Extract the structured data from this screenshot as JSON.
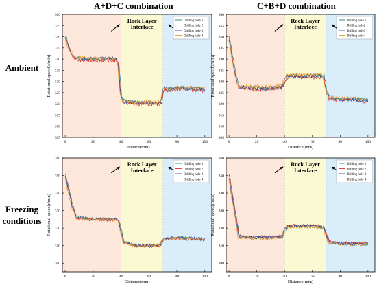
{
  "columns": [
    "A+D+C combination",
    "C+B+D combination"
  ],
  "rows": [
    "Ambient",
    "Freezing conditions"
  ],
  "annotation": [
    "Rock Layer",
    "Interface"
  ],
  "colors": {
    "zone1": "#fce7da",
    "zone2": "#fbf9d4",
    "zone3": "#d9edfa",
    "series": [
      "#1b7f80",
      "#e03127",
      "#2846a0",
      "#e69a2c"
    ]
  },
  "chart_data": [
    {
      "type": "line",
      "panel": "A+D+C combination / Ambient",
      "xlabel": "Distance(mm)",
      "ylabel": "Rotational speed(r/min)",
      "xlim": [
        -2,
        105
      ],
      "ylim": [
        305,
        360
      ],
      "xticks": [
        0,
        20,
        40,
        60,
        80,
        100
      ],
      "yticks": [
        305,
        310,
        315,
        320,
        325,
        330,
        335,
        340,
        345,
        350,
        355,
        360
      ],
      "zones": [
        [
          -2,
          40
        ],
        [
          40,
          70
        ],
        [
          70,
          105
        ]
      ],
      "arrows": [
        [
          33,
          352.5,
          39,
          355.5
        ],
        [
          80,
          352.5,
          74,
          355.5
        ]
      ],
      "legend": [
        "Drilling hole 1",
        "Drilling hole 2",
        "Drilling hole 3",
        "Drilling hole 4"
      ],
      "series_profile": [
        [
          0,
          350
        ],
        [
          2,
          346
        ],
        [
          6,
          341
        ],
        [
          10,
          340
        ],
        [
          20,
          340
        ],
        [
          30,
          340
        ],
        [
          36,
          340
        ],
        [
          38,
          338
        ],
        [
          40,
          323
        ],
        [
          42,
          321
        ],
        [
          50,
          320.5
        ],
        [
          60,
          320.5
        ],
        [
          67,
          320.5
        ],
        [
          69,
          321
        ],
        [
          70,
          326.5
        ],
        [
          80,
          327
        ],
        [
          90,
          327
        ],
        [
          100,
          326.5
        ]
      ]
    },
    {
      "type": "line",
      "panel": "C+B+D combination / Ambient",
      "xlabel": "Distance(mm)",
      "ylabel": "Rotational speed(r/min)",
      "xlim": [
        -2,
        105
      ],
      "ylim": [
        305,
        360
      ],
      "xticks": [
        0,
        20,
        40,
        60,
        80,
        100
      ],
      "yticks": [
        305,
        310,
        315,
        320,
        325,
        330,
        335,
        340,
        345,
        350,
        355,
        360
      ],
      "zones": [
        [
          -2,
          40
        ],
        [
          40,
          70
        ],
        [
          70,
          105
        ]
      ],
      "arrows": [
        [
          33,
          352.5,
          39,
          355.5
        ],
        [
          80,
          352.5,
          74,
          355.5
        ]
      ],
      "legend": [
        "Drilling hole 1",
        "Drilling hole2",
        "Drilling hole3",
        "Drilling hole4"
      ],
      "series_profile": [
        [
          0,
          350
        ],
        [
          2,
          342
        ],
        [
          5,
          332
        ],
        [
          7,
          327.5
        ],
        [
          20,
          327
        ],
        [
          30,
          327
        ],
        [
          38,
          327.5
        ],
        [
          40,
          330
        ],
        [
          42,
          332.5
        ],
        [
          50,
          332.5
        ],
        [
          60,
          332.5
        ],
        [
          68,
          332.5
        ],
        [
          70,
          326
        ],
        [
          72,
          322.5
        ],
        [
          80,
          322
        ],
        [
          90,
          322
        ],
        [
          100,
          321.5
        ]
      ]
    },
    {
      "type": "line",
      "panel": "A+D+C combination / Freezing conditions",
      "xlabel": "Distance(mm)",
      "ylabel": "Rotational speed(r/min)",
      "xlim": [
        -2,
        105
      ],
      "ylim": [
        295,
        360
      ],
      "xticks": [
        0,
        20,
        40,
        60,
        80,
        100
      ],
      "yticks": [
        300,
        310,
        320,
        330,
        340,
        350,
        360
      ],
      "zones": [
        [
          -2,
          40
        ],
        [
          40,
          70
        ],
        [
          70,
          105
        ]
      ],
      "arrows": [
        [
          33,
          351.5,
          39,
          355
        ],
        [
          80,
          351.5,
          74,
          355
        ]
      ],
      "legend": [
        "Drilling hole 1",
        "Drilling hole 2",
        "Drilling hole 3",
        "Drilling hole 4"
      ],
      "series_profile": [
        [
          0,
          350
        ],
        [
          2,
          343
        ],
        [
          5,
          333
        ],
        [
          8,
          326
        ],
        [
          20,
          325
        ],
        [
          30,
          325
        ],
        [
          38,
          325
        ],
        [
          40,
          318
        ],
        [
          42,
          312
        ],
        [
          50,
          310
        ],
        [
          60,
          310
        ],
        [
          68,
          310.5
        ],
        [
          70,
          313
        ],
        [
          72,
          314
        ],
        [
          80,
          314.5
        ],
        [
          90,
          314
        ],
        [
          100,
          313.5
        ]
      ]
    },
    {
      "type": "line",
      "panel": "C+B+D combination / Freezing conditions",
      "xlabel": "Distance(mm)",
      "ylabel": "Rotational speed(r/min)",
      "xlim": [
        -2,
        105
      ],
      "ylim": [
        295,
        360
      ],
      "xticks": [
        0,
        20,
        40,
        60,
        80,
        100
      ],
      "yticks": [
        300,
        310,
        320,
        330,
        340,
        350,
        360
      ],
      "zones": [
        [
          -2,
          40
        ],
        [
          40,
          70
        ],
        [
          70,
          105
        ]
      ],
      "arrows": [
        [
          33,
          351.5,
          39,
          355
        ],
        [
          80,
          351.5,
          74,
          355
        ]
      ],
      "legend": [
        "Drilling hole 1",
        "Drilling hole 2",
        "Drilling hole 3",
        "Drilling hole 4"
      ],
      "series_profile": [
        [
          0,
          350
        ],
        [
          2,
          340
        ],
        [
          5,
          326
        ],
        [
          7,
          315
        ],
        [
          20,
          314.5
        ],
        [
          30,
          314.5
        ],
        [
          38,
          315
        ],
        [
          40,
          319
        ],
        [
          42,
          321
        ],
        [
          50,
          321
        ],
        [
          60,
          321
        ],
        [
          68,
          320.5
        ],
        [
          70,
          316
        ],
        [
          72,
          312
        ],
        [
          80,
          311
        ],
        [
          90,
          311
        ],
        [
          100,
          311
        ]
      ]
    }
  ]
}
